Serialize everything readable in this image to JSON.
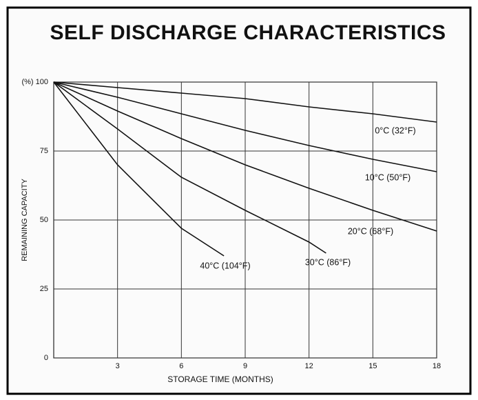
{
  "chart_data": {
    "type": "line",
    "title": "SELF DISCHARGE CHARACTERISTICS",
    "xlabel": "STORAGE TIME (MONTHS)",
    "ylabel": "REMAINING CAPACITY",
    "xlim": [
      0,
      18
    ],
    "ylim": [
      0,
      100
    ],
    "xticks": [
      3,
      6,
      9,
      12,
      15,
      18
    ],
    "yticks": [
      0,
      25,
      50,
      75,
      {
        "value": 100,
        "label": "(%) 100"
      }
    ],
    "grid": true,
    "color": "#111111",
    "series": [
      {
        "name": "0°C (32°F)",
        "x": [
          0,
          3,
          6,
          9,
          12,
          15,
          18
        ],
        "values": [
          100,
          98,
          96,
          94,
          91,
          88.5,
          85.5
        ]
      },
      {
        "name": "10°C (50°F)",
        "x": [
          0,
          3,
          6,
          9,
          12,
          15,
          18
        ],
        "values": [
          100,
          94.5,
          88.5,
          82.5,
          77,
          72,
          67.5
        ]
      },
      {
        "name": "20°C (68°F)",
        "x": [
          0,
          3,
          6,
          9,
          12,
          15,
          18
        ],
        "values": [
          100,
          89.5,
          79.5,
          70,
          61.5,
          53.5,
          46
        ]
      },
      {
        "name": "30°C (86°F)",
        "x": [
          0,
          3,
          6,
          9,
          12,
          12.8
        ],
        "values": [
          100,
          83,
          65.5,
          53.5,
          42,
          38
        ]
      },
      {
        "name": "40°C (104°F)",
        "x": [
          0,
          3,
          6,
          8
        ],
        "values": [
          100,
          70,
          47,
          37
        ]
      }
    ]
  }
}
